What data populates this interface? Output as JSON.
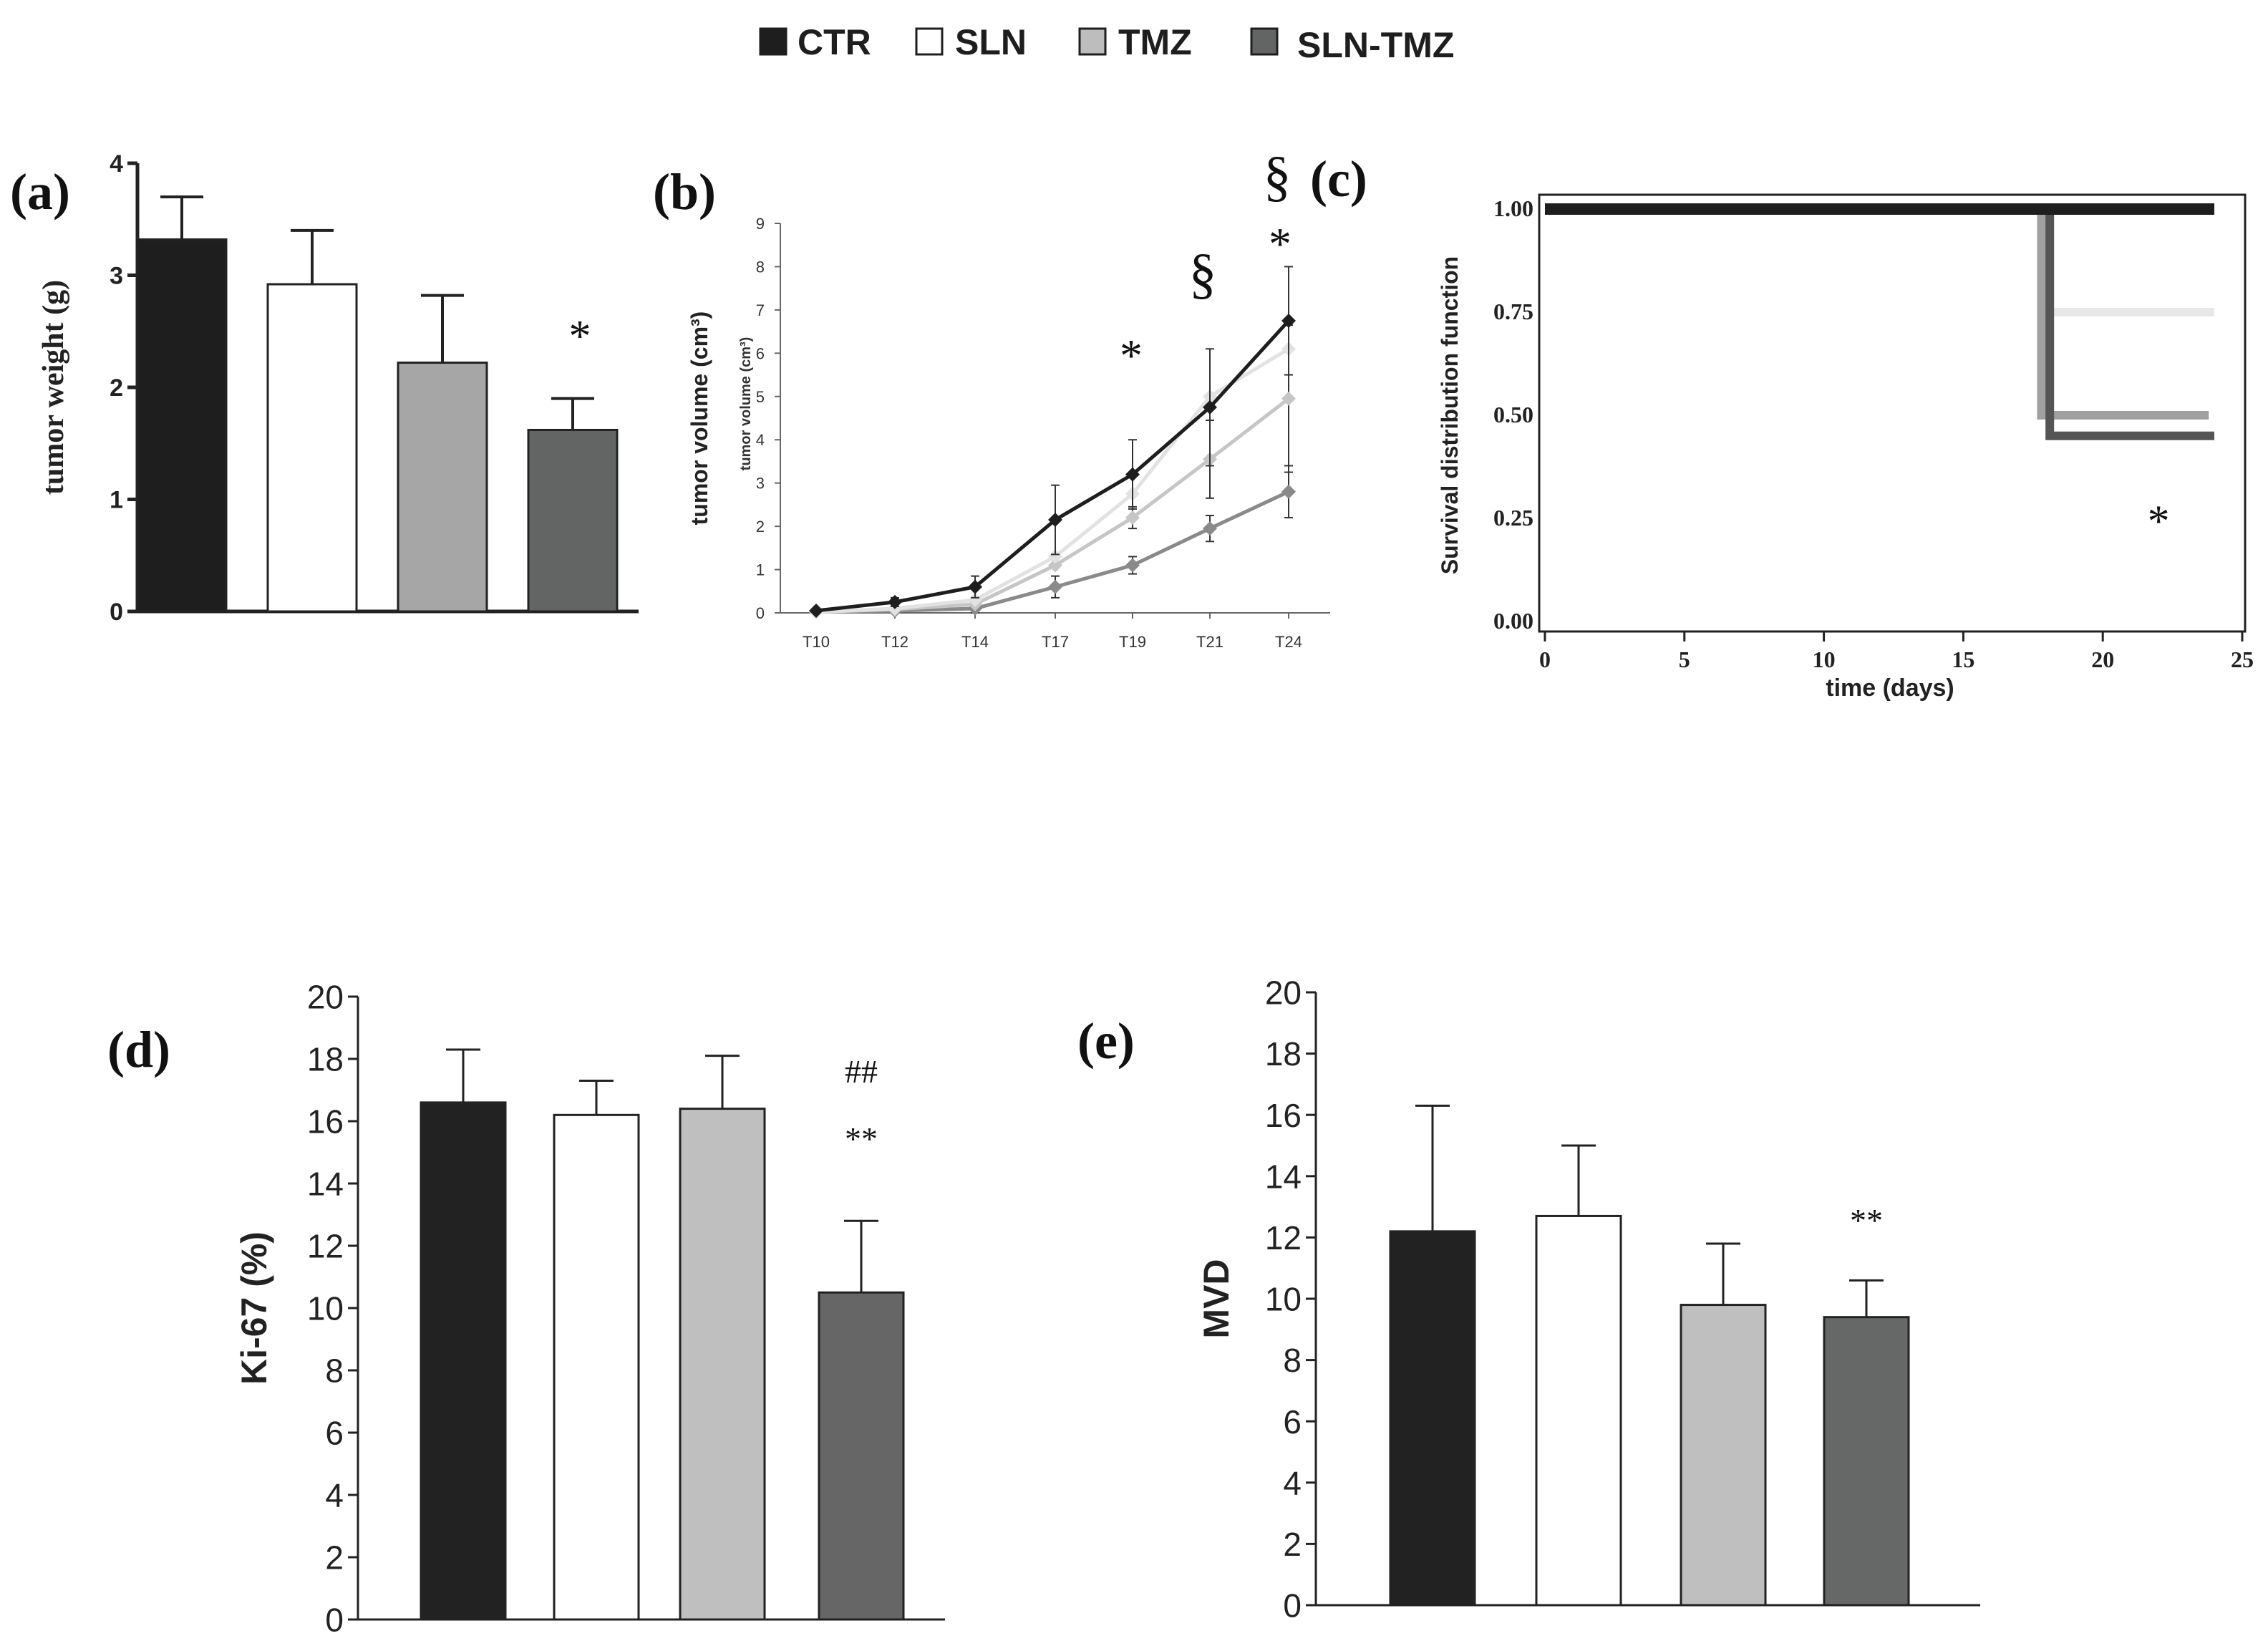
{
  "legend": {
    "items": [
      {
        "label": "CTR",
        "color": "#1e1e1e"
      },
      {
        "label": "SLN",
        "color": "#ffffff"
      },
      {
        "label": "TMZ",
        "color": "#bdbdbd"
      },
      {
        "label": "SLN-TMZ",
        "color": "#636565"
      }
    ]
  },
  "chart_data": [
    {
      "id": "a",
      "panel_label": "(a)",
      "type": "bar",
      "ylabel": "tumor weight (g)",
      "ylim": [
        0,
        4
      ],
      "yticks": [
        "0",
        "1",
        "2",
        "3",
        "4"
      ],
      "categories": [
        "CTR",
        "SLN",
        "TMZ",
        "SLN-TMZ"
      ],
      "values": [
        3.32,
        2.92,
        2.22,
        1.62
      ],
      "errors": [
        0.38,
        0.48,
        0.6,
        0.28
      ],
      "colors": [
        "#1e1e1e",
        "#ffffff",
        "#a6a6a6",
        "#636565"
      ],
      "annotations": [
        {
          "category": "SLN-TMZ",
          "text": "*"
        }
      ]
    },
    {
      "id": "b",
      "panel_label": "(b)",
      "type": "line",
      "ylabel": "tumor volume (cm³)",
      "ylabel_inner": "tumor volume (cm³)",
      "ylim": [
        0,
        9
      ],
      "yticks": [
        "0",
        "1",
        "2",
        "3",
        "4",
        "5",
        "6",
        "7",
        "8",
        "9"
      ],
      "categories": [
        "T10",
        "T12",
        "T14",
        "T17",
        "T19",
        "T21",
        "T24"
      ],
      "series": [
        {
          "name": "CTR",
          "color": "#1e1e1e",
          "values": [
            0.05,
            0.25,
            0.6,
            2.15,
            3.2,
            4.75,
            6.75
          ],
          "errors": [
            0.05,
            0.1,
            0.25,
            0.8,
            0.8,
            1.35,
            1.25
          ]
        },
        {
          "name": "SLN",
          "color": "#e2e2e2",
          "values": [
            0.02,
            0.1,
            0.3,
            1.3,
            2.75,
            5.0,
            6.1
          ],
          "errors": [
            0,
            0,
            0,
            0,
            0,
            0,
            0
          ]
        },
        {
          "name": "TMZ",
          "color": "#c6c6c6",
          "values": [
            0.02,
            0.08,
            0.2,
            1.1,
            2.2,
            3.55,
            4.95
          ],
          "errors": [
            0,
            0,
            0,
            0,
            0.25,
            0.9,
            1.7
          ]
        },
        {
          "name": "SLN-TMZ",
          "color": "#8a8a8a",
          "values": [
            0.02,
            0.05,
            0.1,
            0.6,
            1.1,
            1.95,
            2.8
          ],
          "errors": [
            0.02,
            0.05,
            0.1,
            0.25,
            0.2,
            0.3,
            0.6
          ]
        }
      ],
      "annotations": [
        {
          "category": "T19",
          "text": "*"
        },
        {
          "category": "T21",
          "text": "§"
        },
        {
          "category": "T24",
          "text": "*"
        },
        {
          "category": "T24",
          "text": "§"
        }
      ]
    },
    {
      "id": "c",
      "panel_label": "(c)",
      "type": "line",
      "subtype": "step",
      "xlabel": "time (days)",
      "ylabel": "Survival distribution function",
      "xlim": [
        0,
        25
      ],
      "ylim": [
        0,
        1
      ],
      "xticks": [
        "0",
        "5",
        "10",
        "15",
        "20",
        "25"
      ],
      "yticks": [
        "0.00",
        "0.25",
        "0.50",
        "0.75",
        "1.00"
      ],
      "series": [
        {
          "name": "CTR",
          "color": "#1e1e1e",
          "x": [
            0,
            24
          ],
          "y": [
            1.0,
            1.0
          ]
        },
        {
          "name": "SLN",
          "color": "#e8e8e8",
          "x": [
            0,
            18,
            18,
            24
          ],
          "y": [
            1.0,
            1.0,
            0.75,
            0.75
          ]
        },
        {
          "name": "TMZ",
          "color": "#a0a0a0",
          "x": [
            0,
            17.8,
            17.8,
            23.8
          ],
          "y": [
            1.0,
            1.0,
            0.5,
            0.5
          ]
        },
        {
          "name": "SLN-TMZ",
          "color": "#555555",
          "x": [
            0,
            18.1,
            18.1,
            24
          ],
          "y": [
            1.0,
            1.0,
            0.45,
            0.45
          ]
        }
      ],
      "annotations": [
        {
          "x": 22,
          "y": 0.27,
          "text": "*"
        }
      ]
    },
    {
      "id": "d",
      "panel_label": "(d)",
      "type": "bar",
      "ylabel": "Ki-67 (%)",
      "ylim": [
        0,
        20
      ],
      "yticks": [
        "0",
        "2",
        "4",
        "6",
        "8",
        "10",
        "12",
        "14",
        "16",
        "18",
        "20"
      ],
      "categories": [
        "CTR",
        "SLN",
        "TMZ",
        "SLN-TMZ"
      ],
      "values": [
        16.6,
        16.2,
        16.4,
        10.5
      ],
      "errors": [
        1.7,
        1.1,
        1.7,
        2.3
      ],
      "colors": [
        "#222222",
        "#ffffff",
        "#c0bfbf",
        "#666666"
      ],
      "annotations": [
        {
          "category": "SLN-TMZ",
          "text": "##"
        },
        {
          "category": "SLN-TMZ",
          "text": "**"
        }
      ]
    },
    {
      "id": "e",
      "panel_label": "(e)",
      "type": "bar",
      "ylabel": "MVD",
      "ylim": [
        0,
        20
      ],
      "yticks": [
        "0",
        "2",
        "4",
        "6",
        "8",
        "10",
        "12",
        "14",
        "16",
        "18",
        "20"
      ],
      "categories": [
        "CTR",
        "SLN",
        "TMZ",
        "SLN-TMZ"
      ],
      "values": [
        12.2,
        12.7,
        9.8,
        9.4
      ],
      "errors": [
        4.1,
        2.3,
        2.0,
        1.2
      ],
      "colors": [
        "#222222",
        "#ffffff",
        "#c0bfbf",
        "#666868"
      ],
      "annotations": [
        {
          "category": "SLN-TMZ",
          "text": "**"
        }
      ]
    }
  ]
}
